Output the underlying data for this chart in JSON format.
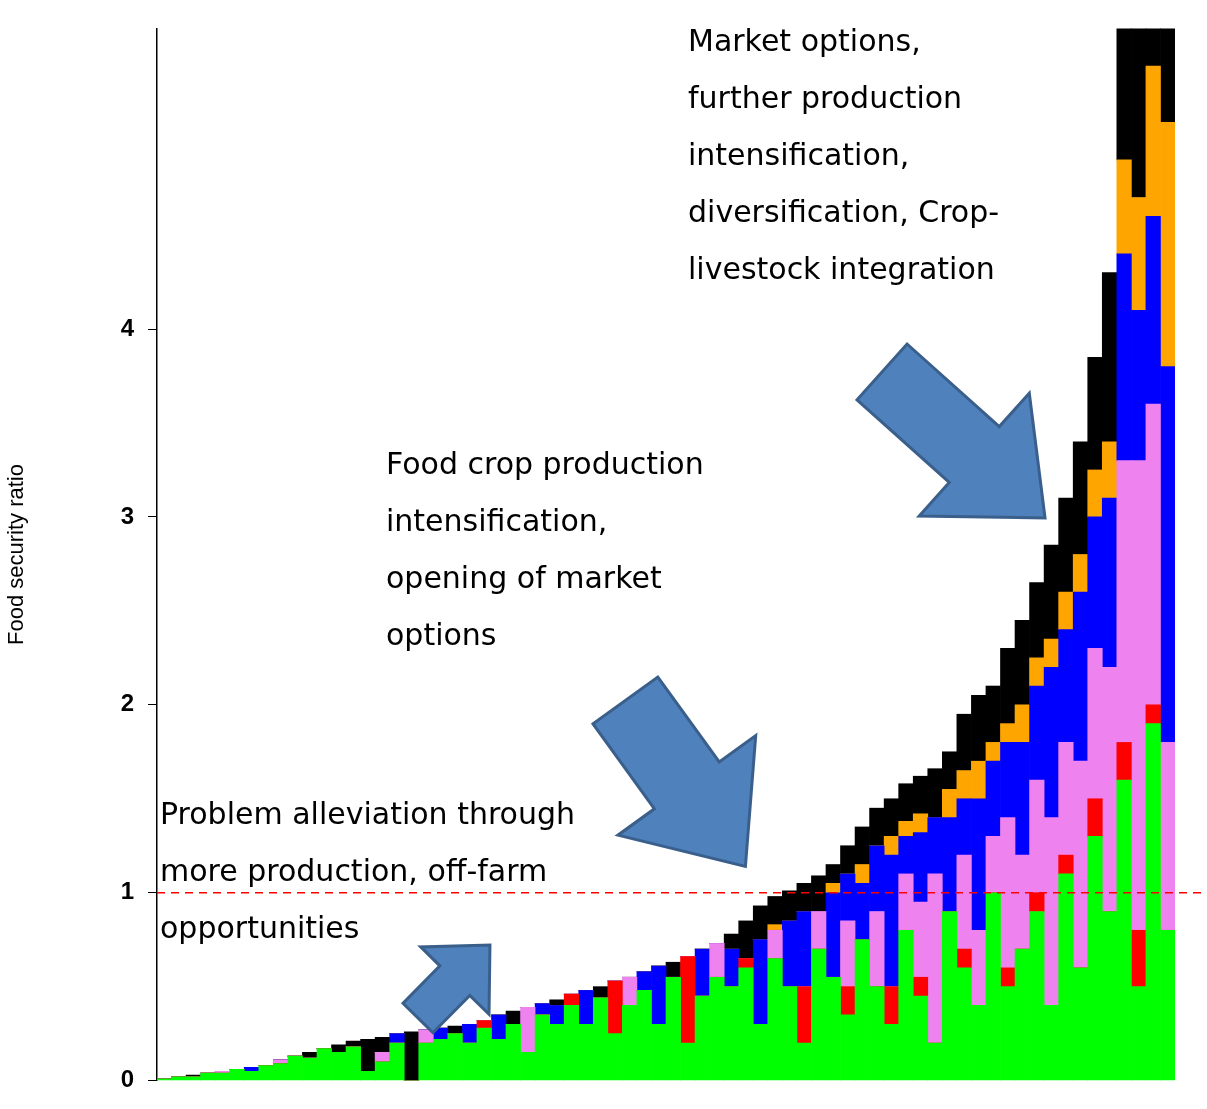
{
  "chart_data": {
    "type": "bar",
    "stacked": true,
    "ylabel": "Food security ratio",
    "annotations": [
      "Market options, further production intensification, diversification, Crop-livestock integration",
      "Food crop production intensification, opening of market options",
      "Problem alleviation through more production, off-farm opportunities"
    ],
    "categories": [
      null,
      null,
      null,
      null,
      null,
      null,
      null,
      null,
      null,
      null,
      null,
      null,
      null,
      null,
      null,
      null,
      null,
      null,
      null,
      null,
      null,
      null,
      null,
      null,
      null,
      null,
      null,
      null,
      null,
      null,
      null,
      null,
      null,
      null,
      null,
      null,
      null,
      null,
      null,
      null,
      null,
      null,
      null,
      null,
      null,
      null,
      null,
      null,
      null,
      null,
      null,
      null,
      null,
      null,
      null,
      null,
      null,
      null,
      null,
      null,
      null,
      null,
      null,
      null,
      null,
      null,
      null,
      null,
      null,
      null
    ],
    "series": [
      {
        "color": "#00ff00",
        "values": [
          0.01,
          0.02,
          0.02,
          0.04,
          0.04,
          0.06,
          0.05,
          0.08,
          0.09,
          0.13,
          0.12,
          0.17,
          0.15,
          0.18,
          0.05,
          0.1,
          0.2,
          0,
          0.2,
          0.22,
          0.25,
          0.2,
          0.28,
          0.22,
          0.3,
          0.15,
          0.35,
          0.3,
          0.4,
          0.3,
          0.44,
          0.25,
          0.4,
          0.48,
          0.3,
          0.55,
          0.2,
          0.45,
          0.55,
          0.5,
          0.6,
          0.3,
          0.65,
          0.5,
          0.2,
          0.7,
          0.55,
          0.35,
          0.75,
          0.5,
          0.3,
          0.8,
          0.45,
          0.2,
          0.9,
          0.6,
          0.4,
          1.0,
          0.5,
          0.7,
          0.9,
          0.4,
          1.1,
          0.6,
          1.3,
          0.9,
          1.6,
          0.5,
          1.9,
          0.8
        ]
      },
      {
        "color": "#ff0000",
        "values": [
          0,
          0,
          0,
          0,
          0,
          0,
          0,
          0,
          0,
          0,
          0,
          0,
          0,
          0,
          0,
          0,
          0,
          0,
          0,
          0,
          0,
          0,
          0.04,
          0,
          0,
          0,
          0,
          0,
          0.06,
          0,
          0,
          0.28,
          0,
          0,
          0,
          0,
          0.46,
          0,
          0,
          0,
          0.05,
          0,
          0,
          0,
          0.3,
          0,
          0,
          0.15,
          0,
          0,
          0.2,
          0,
          0.1,
          0,
          0,
          0.1,
          0,
          0,
          0.1,
          0,
          0.1,
          0,
          0.1,
          0,
          0.2,
          0,
          0.2,
          0.3,
          0.1,
          0
        ]
      },
      {
        "color": "#ee82ee",
        "values": [
          0,
          0,
          0,
          0,
          0.01,
          0,
          0,
          0,
          0.02,
          0,
          0,
          0,
          0,
          0,
          0,
          0.05,
          0,
          0,
          0.07,
          0,
          0,
          0,
          0,
          0,
          0,
          0.24,
          0,
          0,
          0,
          0,
          0,
          0,
          0.15,
          0,
          0,
          0,
          0,
          0,
          0.18,
          0,
          0,
          0,
          0.15,
          0,
          0,
          0.2,
          0,
          0.35,
          0,
          0.4,
          0,
          0.3,
          0.4,
          0.9,
          0,
          0.5,
          0.4,
          0.3,
          0.8,
          0.5,
          0.6,
          1.0,
          0.6,
          1.1,
          0.8,
          1.3,
          1.5,
          2.5,
          1.6,
          1.0
        ]
      },
      {
        "color": "#0000ff",
        "values": [
          0,
          0,
          0,
          0,
          0,
          0,
          0.02,
          0,
          0,
          0,
          0,
          0,
          0,
          0,
          0,
          0,
          0.05,
          0,
          0,
          0.06,
          0,
          0.1,
          0,
          0.13,
          0,
          0,
          0.06,
          0.1,
          0,
          0.18,
          0,
          0,
          0,
          0.1,
          0.31,
          0,
          0,
          0.25,
          0,
          0.2,
          0,
          0.45,
          0,
          0.35,
          0.4,
          0,
          0.45,
          0.25,
          0.3,
          0.35,
          0.7,
          0.2,
          0.37,
          0.3,
          0.5,
          0.3,
          0.7,
          0.4,
          0.4,
          0.6,
          0.5,
          0.8,
          0.6,
          0.9,
          0.7,
          0.9,
          1.1,
          0.8,
          1.0,
          2.0
        ]
      },
      {
        "color": "#ffa500",
        "values": [
          0,
          0,
          0,
          0,
          0,
          0,
          0,
          0,
          0,
          0,
          0,
          0,
          0,
          0,
          0,
          0,
          0,
          0,
          0,
          0,
          0,
          0,
          0,
          0,
          0,
          0,
          0,
          0,
          0,
          0,
          0,
          0,
          0,
          0,
          0,
          0,
          0,
          0,
          0,
          0,
          0,
          0,
          0.03,
          0,
          0,
          0,
          0.05,
          0,
          0.1,
          0,
          0.1,
          0.08,
          0.1,
          0,
          0.15,
          0.15,
          0.2,
          0.1,
          0.1,
          0.2,
          0.15,
          0.15,
          0.2,
          0.2,
          0.25,
          0.3,
          0.5,
          0.6,
          0.8,
          1.3
        ]
      },
      {
        "color": "#000000",
        "values": [
          0,
          0,
          0.01,
          0,
          0,
          0,
          0,
          0,
          0,
          0,
          0.03,
          0,
          0.04,
          0.03,
          0.17,
          0.08,
          0,
          0.26,
          0,
          0,
          0.04,
          0,
          0,
          0,
          0.07,
          0,
          0,
          0.03,
          0,
          0,
          0.06,
          0,
          0,
          0,
          0,
          0.08,
          0,
          0,
          0,
          0.08,
          0.2,
          0.18,
          0.15,
          0.16,
          0.15,
          0.19,
          0.1,
          0.15,
          0.2,
          0.2,
          0.2,
          0.2,
          0.2,
          0.26,
          0.2,
          0.3,
          0.35,
          0.3,
          0.4,
          0.45,
          0.4,
          0.5,
          0.5,
          0.6,
          0.6,
          0.9,
          0.7,
          0.9,
          0.2,
          0.5
        ]
      }
    ],
    "ylim": [
      0,
      5.6
    ],
    "yticks": [
      0,
      1,
      2,
      3,
      4
    ],
    "grid": false,
    "legend": false,
    "ref_lines": [
      {
        "axis": "y",
        "value": 1,
        "color": "#ff0000",
        "line_style": "dashed"
      }
    ]
  }
}
